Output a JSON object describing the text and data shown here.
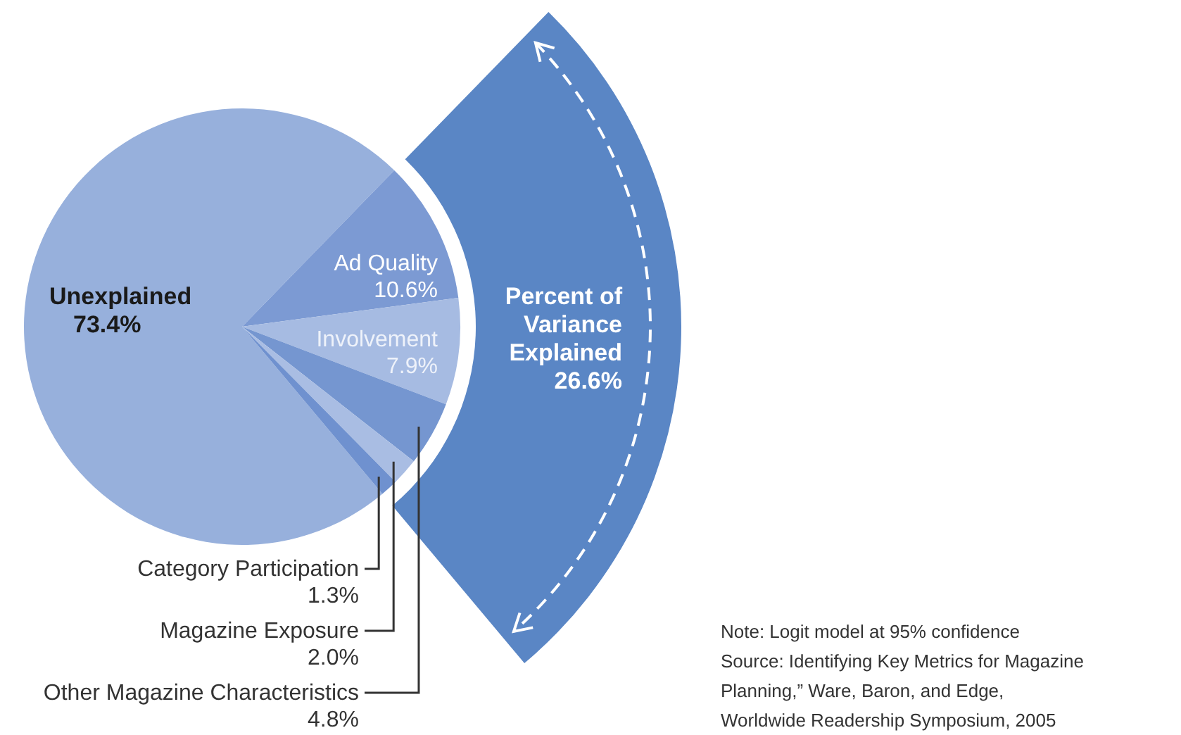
{
  "chart_data": {
    "type": "pie",
    "categories": [
      "Unexplained",
      "Ad Quality",
      "Involvement",
      "Other Magazine Characteristics",
      "Magazine Exposure",
      "Category Participation"
    ],
    "values": [
      73.4,
      10.6,
      7.9,
      4.8,
      2.0,
      1.3
    ],
    "value_labels": [
      "73.4%",
      "10.6%",
      "7.9%",
      "4.8%",
      "2.0%",
      "1.3%"
    ],
    "colors": [
      "#97b0dc",
      "#7c9ad3",
      "#a6bbe2",
      "#7596d0",
      "#a9bde3",
      "#6f91cf"
    ],
    "annotations": [
      "Percent of",
      "Variance",
      "Explained",
      "26.6%",
      "Note: Logit model at 95% confidence",
      "Source: Identifying  Key Metrics for Magazine",
      "Planning,” Ware, Baron, and Edge,",
      "Worldwide Readership Symposium, 2005"
    ]
  }
}
